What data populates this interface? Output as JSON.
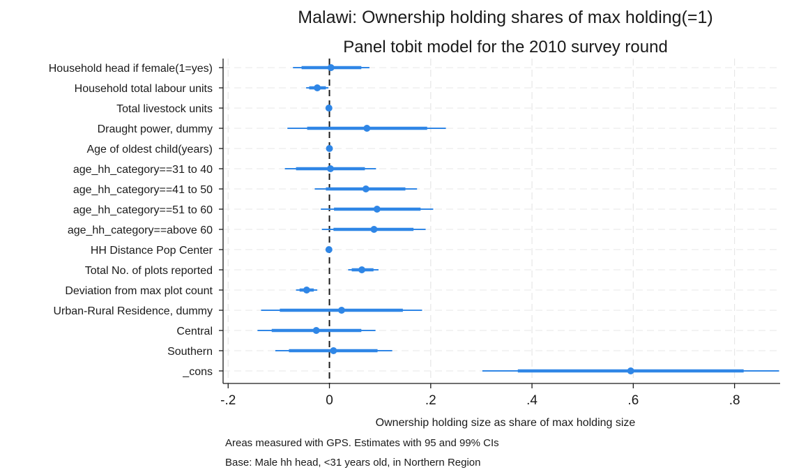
{
  "chart_data": {
    "type": "coefficient_plot",
    "title": "Malawi: Ownership holding shares of max holding(=1)",
    "subtitle": "Panel tobit model for the 2010 survey round",
    "xlabel": "Ownership holding size as share of max holding size",
    "notes": [
      "Areas measured with GPS. Estimates with 95 and 99% CIs",
      "Base: Male hh head, <31 years old, in Northern Region"
    ],
    "xlim": [
      -0.21,
      0.89
    ],
    "xticks": [
      {
        "value": -0.2,
        "label": "-.2"
      },
      {
        "value": 0,
        "label": "0"
      },
      {
        "value": 0.2,
        "label": ".2"
      },
      {
        "value": 0.4,
        "label": ".4"
      },
      {
        "value": 0.6,
        "label": ".6"
      },
      {
        "value": 0.8,
        "label": ".8"
      }
    ],
    "reference_line": 0,
    "grid": true,
    "color": "#2f86e6",
    "coefficients": [
      {
        "label": "Household head if female(1=yes)",
        "estimate": 0.003,
        "ci95": [
          -0.055,
          0.063
        ],
        "ci99": [
          -0.072,
          0.079
        ]
      },
      {
        "label": "Household total labour units",
        "estimate": -0.024,
        "ci95": [
          -0.04,
          -0.007
        ],
        "ci99": [
          -0.046,
          -0.002
        ]
      },
      {
        "label": "Total livestock units",
        "estimate": -0.001,
        "ci95": [
          -0.003,
          0.001
        ],
        "ci99": [
          -0.004,
          0.002
        ]
      },
      {
        "label": "Draught power, dummy",
        "estimate": 0.074,
        "ci95": [
          -0.044,
          0.193
        ],
        "ci99": [
          -0.083,
          0.23
        ]
      },
      {
        "label": "Age of oldest child(years)",
        "estimate": 0,
        "ci95": [
          -0.002,
          0.002
        ],
        "ci99": [
          -0.003,
          0.003
        ]
      },
      {
        "label": "age_hh_category==31 to 40",
        "estimate": 0.002,
        "ci95": [
          -0.066,
          0.07
        ],
        "ci99": [
          -0.088,
          0.092
        ]
      },
      {
        "label": "age_hh_category==41 to 50",
        "estimate": 0.072,
        "ci95": [
          -0.007,
          0.15
        ],
        "ci99": [
          -0.029,
          0.173
        ]
      },
      {
        "label": "age_hh_category==51 to 60",
        "estimate": 0.094,
        "ci95": [
          0.009,
          0.18
        ],
        "ci99": [
          -0.017,
          0.205
        ]
      },
      {
        "label": "age_hh_category==above 60",
        "estimate": 0.088,
        "ci95": [
          0.008,
          0.166
        ],
        "ci99": [
          -0.015,
          0.19
        ]
      },
      {
        "label": "HH Distance Pop Center",
        "estimate": -0.001,
        "ci95": [
          -0.002,
          0
        ],
        "ci99": [
          -0.003,
          0.001
        ]
      },
      {
        "label": "Total No. of plots reported",
        "estimate": 0.064,
        "ci95": [
          0.044,
          0.087
        ],
        "ci99": [
          0.037,
          0.097
        ]
      },
      {
        "label": "Deviation from max plot count",
        "estimate": -0.045,
        "ci95": [
          -0.059,
          -0.031
        ],
        "ci99": [
          -0.066,
          -0.024
        ]
      },
      {
        "label": "Urban-Rural Residence, dummy",
        "estimate": 0.024,
        "ci95": [
          -0.098,
          0.145
        ],
        "ci99": [
          -0.135,
          0.183
        ]
      },
      {
        "label": "Central",
        "estimate": -0.026,
        "ci95": [
          -0.114,
          0.063
        ],
        "ci99": [
          -0.142,
          0.091
        ]
      },
      {
        "label": "Southern",
        "estimate": 0.008,
        "ci95": [
          -0.08,
          0.095
        ],
        "ci99": [
          -0.107,
          0.124
        ]
      },
      {
        "label": "_cons",
        "estimate": 0.595,
        "ci95": [
          0.372,
          0.818
        ],
        "ci99": [
          0.302,
          0.888
        ]
      }
    ]
  }
}
